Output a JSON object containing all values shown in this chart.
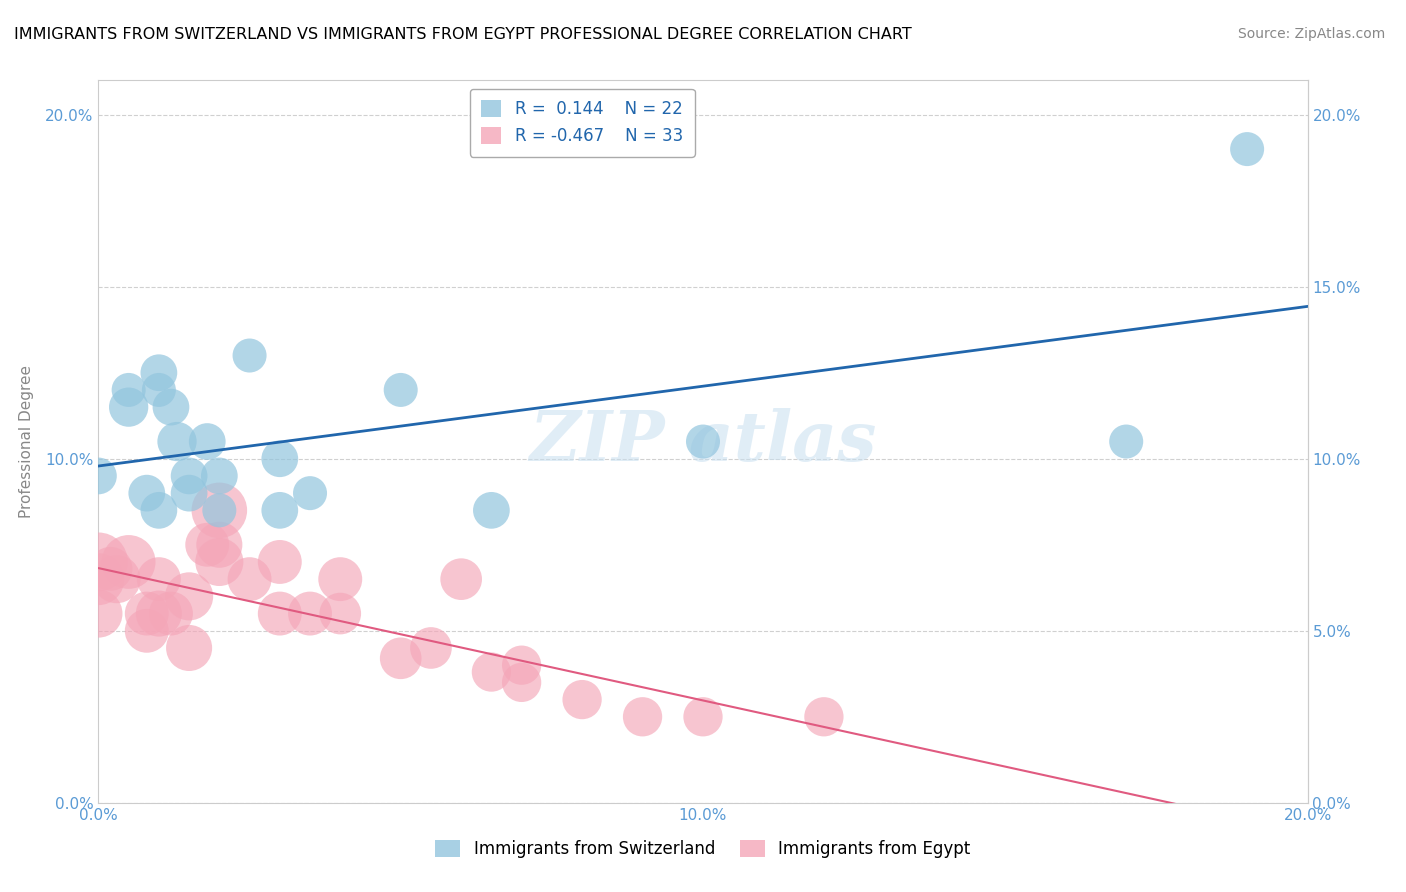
{
  "title": "IMMIGRANTS FROM SWITZERLAND VS IMMIGRANTS FROM EGYPT PROFESSIONAL DEGREE CORRELATION CHART",
  "source": "Source: ZipAtlas.com",
  "ylabel": "Professional Degree",
  "xlim": [
    0.0,
    0.2
  ],
  "ylim": [
    0.0,
    0.21
  ],
  "xticks": [
    0.0,
    0.05,
    0.1,
    0.15,
    0.2
  ],
  "yticks": [
    0.0,
    0.05,
    0.1,
    0.15,
    0.2
  ],
  "xticklabels": [
    "0.0%",
    "",
    "10.0%",
    "",
    "20.0%"
  ],
  "yticklabels": [
    "0.0%",
    "",
    "10.0%",
    "",
    "20.0%"
  ],
  "right_yticklabels": [
    "0.0%",
    "5.0%",
    "10.0%",
    "15.0%",
    "20.0%"
  ],
  "swiss_color": "#92c5de",
  "egypt_color": "#f4a6b8",
  "swiss_line_color": "#2166ac",
  "egypt_line_color": "#e05a80",
  "legend_r1": "R =  0.144",
  "legend_n1": "N = 22",
  "legend_r2": "R = -0.467",
  "legend_n2": "N = 33",
  "swiss_x": [
    0.005,
    0.01,
    0.01,
    0.012,
    0.013,
    0.015,
    0.015,
    0.018,
    0.02,
    0.025,
    0.03,
    0.035,
    0.05,
    0.065,
    0.1,
    0.17
  ],
  "swiss_y": [
    0.115,
    0.125,
    0.12,
    0.115,
    0.105,
    0.095,
    0.09,
    0.105,
    0.095,
    0.13,
    0.1,
    0.09,
    0.12,
    0.085,
    0.105,
    0.105
  ],
  "swiss_s": [
    40,
    35,
    30,
    35,
    40,
    35,
    35,
    35,
    35,
    30,
    35,
    30,
    30,
    35,
    30,
    30
  ],
  "swiss_x2": [
    0.0,
    0.005,
    0.008,
    0.01,
    0.02,
    0.03,
    0.19
  ],
  "swiss_y2": [
    0.095,
    0.12,
    0.09,
    0.085,
    0.085,
    0.085,
    0.19
  ],
  "swiss_s2": [
    35,
    30,
    35,
    35,
    30,
    35,
    30
  ],
  "egypt_x": [
    0.0,
    0.0,
    0.0,
    0.002,
    0.003,
    0.005,
    0.008,
    0.008,
    0.01,
    0.01,
    0.012,
    0.015,
    0.015,
    0.018,
    0.02,
    0.02,
    0.02,
    0.025,
    0.03,
    0.03,
    0.035,
    0.04,
    0.04,
    0.05,
    0.055,
    0.06,
    0.065,
    0.07,
    0.07,
    0.08,
    0.09,
    0.1,
    0.12
  ],
  "egypt_y": [
    0.07,
    0.065,
    0.055,
    0.068,
    0.065,
    0.07,
    0.05,
    0.055,
    0.055,
    0.065,
    0.055,
    0.06,
    0.045,
    0.075,
    0.075,
    0.07,
    0.085,
    0.065,
    0.07,
    0.055,
    0.055,
    0.065,
    0.055,
    0.042,
    0.045,
    0.065,
    0.038,
    0.04,
    0.035,
    0.03,
    0.025,
    0.025,
    0.025
  ],
  "egypt_s": [
    90,
    70,
    60,
    50,
    60,
    75,
    50,
    50,
    55,
    50,
    50,
    60,
    55,
    50,
    55,
    60,
    80,
    50,
    50,
    50,
    50,
    50,
    45,
    45,
    45,
    45,
    40,
    40,
    40,
    40,
    40,
    40,
    40
  ]
}
